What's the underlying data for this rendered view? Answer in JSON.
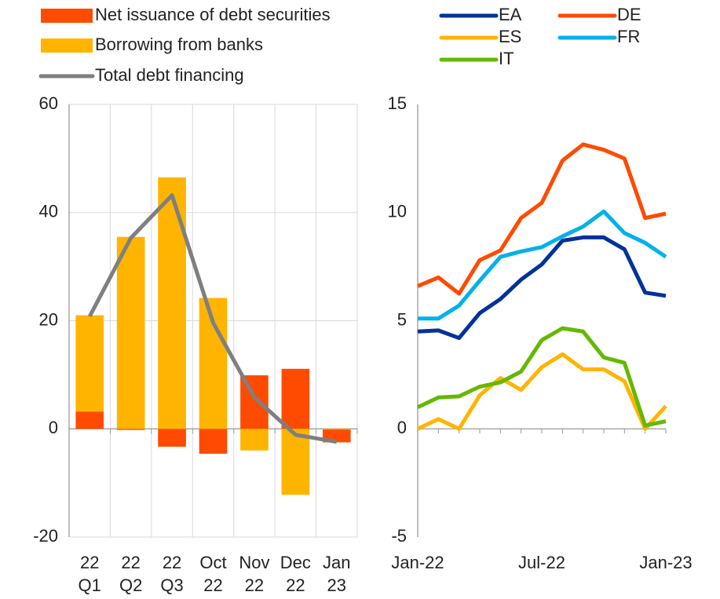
{
  "chart_data": [
    {
      "type": "bar",
      "stacked": true,
      "grid": true,
      "categories": [
        "22 Q1",
        "22 Q2",
        "22 Q3",
        "Oct 22",
        "Nov 22",
        "Dec 22",
        "Jan 23"
      ],
      "series": [
        {
          "name": "Net issuance of debt securities",
          "color": "#ff4b00",
          "kind": "bar",
          "values": [
            3.2,
            -0.2,
            -3.3,
            -4.6,
            9.9,
            11.1,
            -2.5
          ]
        },
        {
          "name": "Borrowing from banks",
          "color": "#ffb400",
          "kind": "bar",
          "values": [
            17.8,
            35.5,
            46.5,
            24.2,
            -4.0,
            -12.2,
            0.0
          ]
        },
        {
          "name": "Total debt financing",
          "color": "#7f7f7f",
          "kind": "line",
          "values": [
            20.8,
            35.3,
            43.2,
            19.6,
            5.8,
            -1.1,
            -2.4
          ]
        }
      ],
      "ylim": [
        -20,
        60
      ],
      "yticks": [
        -20,
        0,
        20,
        40,
        60
      ]
    },
    {
      "type": "line",
      "grid": false,
      "categories": [
        "Jan-22",
        null,
        null,
        null,
        null,
        null,
        "Jul-22",
        null,
        null,
        null,
        null,
        null,
        "Jan-23"
      ],
      "series": [
        {
          "name": "EA",
          "color": "#003299",
          "values": [
            4.5,
            4.55,
            4.2,
            5.35,
            6.0,
            6.9,
            7.6,
            8.7,
            8.85,
            8.85,
            8.3,
            6.3,
            6.15
          ]
        },
        {
          "name": "DE",
          "color": "#ff4b00",
          "values": [
            6.6,
            7.0,
            6.25,
            7.8,
            8.25,
            9.75,
            10.45,
            12.4,
            13.15,
            12.9,
            12.5,
            9.75,
            9.95
          ]
        },
        {
          "name": "ES",
          "color": "#ffb400",
          "values": [
            0.0,
            0.45,
            0.0,
            1.55,
            2.35,
            1.8,
            2.85,
            3.45,
            2.75,
            2.75,
            2.2,
            0.0,
            1.05
          ]
        },
        {
          "name": "FR",
          "color": "#00b1ea",
          "values": [
            5.1,
            5.1,
            5.7,
            6.85,
            7.95,
            8.2,
            8.4,
            8.9,
            9.35,
            10.05,
            9.05,
            8.6,
            7.95
          ]
        },
        {
          "name": "IT",
          "color": "#65b800",
          "values": [
            1.0,
            1.45,
            1.5,
            1.95,
            2.15,
            2.65,
            4.1,
            4.65,
            4.5,
            3.3,
            3.05,
            0.15,
            0.35
          ]
        }
      ],
      "ylim": [
        -5,
        15
      ],
      "yticks": [
        -5,
        0,
        5,
        10,
        15
      ]
    }
  ]
}
